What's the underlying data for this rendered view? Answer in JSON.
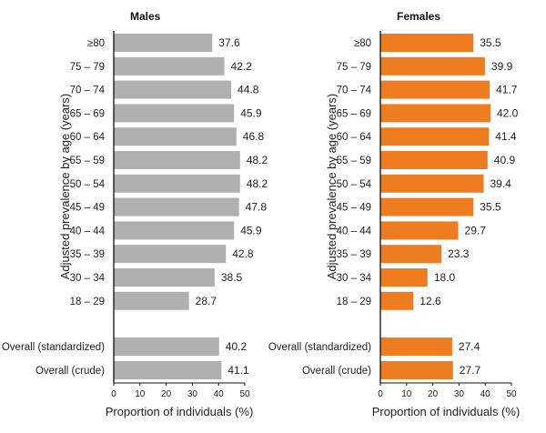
{
  "chart_data": [
    {
      "type": "bar",
      "orientation": "horizontal",
      "title": "Males",
      "xlabel": "Proportion of individuals (%)",
      "ylabel": "Adjusted prevalence by age (years)",
      "xlim": [
        0,
        50
      ],
      "xticks": [
        0,
        10,
        20,
        30,
        40,
        50
      ],
      "color": "#b0b0b0",
      "categories": [
        "≥80",
        "75 – 79",
        "70 – 74",
        "65 – 69",
        "60 – 64",
        "55 – 59",
        "50 – 54",
        "45 – 49",
        "40 – 44",
        "35 – 39",
        "30 – 34",
        "18 – 29"
      ],
      "values": [
        37.6,
        42.2,
        44.8,
        45.9,
        46.8,
        48.2,
        48.2,
        47.8,
        45.9,
        42.8,
        38.5,
        28.7
      ],
      "value_labels": [
        "37.6",
        "42.2",
        "44.8",
        "45.9",
        "46.8",
        "48.2",
        "48.2",
        "47.8",
        "45.9",
        "42.8",
        "38.5",
        "28.7"
      ],
      "overall_categories": [
        "Overall (standardized)",
        "Overall (crude)"
      ],
      "overall_values": [
        40.2,
        41.1
      ],
      "overall_value_labels": [
        "40.2",
        "41.1"
      ],
      "grid": false
    },
    {
      "type": "bar",
      "orientation": "horizontal",
      "title": "Females",
      "xlabel": "Proportion of individuals (%)",
      "ylabel": "Adjusted prevalence by age (years)",
      "xlim": [
        0,
        50
      ],
      "xticks": [
        0,
        10,
        20,
        30,
        40,
        50
      ],
      "color": "#ee7d22",
      "categories": [
        "≥80",
        "75 – 79",
        "70 – 74",
        "65 – 69",
        "60 – 64",
        "55 – 59",
        "50 – 54",
        "45 – 49",
        "40 – 44",
        "35 – 39",
        "30 – 34",
        "18 – 29"
      ],
      "values": [
        35.5,
        39.9,
        41.7,
        42.0,
        41.4,
        40.9,
        39.4,
        35.5,
        29.7,
        23.3,
        18.0,
        12.6
      ],
      "value_labels": [
        "35.5",
        "39.9",
        "41.7",
        "42.0",
        "41.4",
        "40.9",
        "39.4",
        "35.5",
        "29.7",
        "23.3",
        "18.0",
        "12.6"
      ],
      "overall_categories": [
        "Overall (standardized)",
        "Overall (crude)"
      ],
      "overall_values": [
        27.4,
        27.7
      ],
      "overall_value_labels": [
        "27.4",
        "27.7"
      ],
      "grid": false
    }
  ]
}
